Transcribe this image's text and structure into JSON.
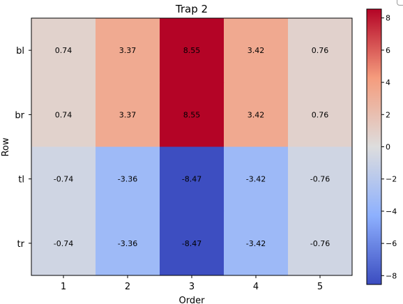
{
  "chart_data": {
    "type": "heatmap",
    "title": "Trap 2",
    "xlabel": "Order",
    "ylabel": "Row",
    "x_categories": [
      "1",
      "2",
      "3",
      "4",
      "5"
    ],
    "y_categories": [
      "bl",
      "br",
      "tl",
      "tr"
    ],
    "values": [
      [
        0.74,
        3.37,
        8.55,
        3.42,
        0.76
      ],
      [
        0.74,
        3.37,
        8.55,
        3.42,
        0.76
      ],
      [
        -0.74,
        -3.36,
        -8.47,
        -3.42,
        -0.76
      ],
      [
        -0.74,
        -3.36,
        -8.47,
        -3.42,
        -0.76
      ]
    ],
    "cell_labels": [
      [
        "0.74",
        "3.37",
        "8.55",
        "3.42",
        "0.76"
      ],
      [
        "0.74",
        "3.37",
        "8.55",
        "3.42",
        "0.76"
      ],
      [
        "-0.74",
        "-3.36",
        "-8.47",
        "-3.42",
        "-0.76"
      ],
      [
        "-0.74",
        "-3.36",
        "-8.47",
        "-3.42",
        "-0.76"
      ]
    ],
    "colormap": "coolwarm",
    "color_range": [
      -8.55,
      8.55
    ],
    "colorbar_ticks": [
      8,
      6,
      4,
      2,
      0,
      -2,
      -4,
      -6,
      -8
    ],
    "colorbar_tick_labels": [
      "8",
      "6",
      "4",
      "2",
      "0",
      "−2",
      "−4",
      "−6",
      "−8"
    ],
    "grid": false
  }
}
